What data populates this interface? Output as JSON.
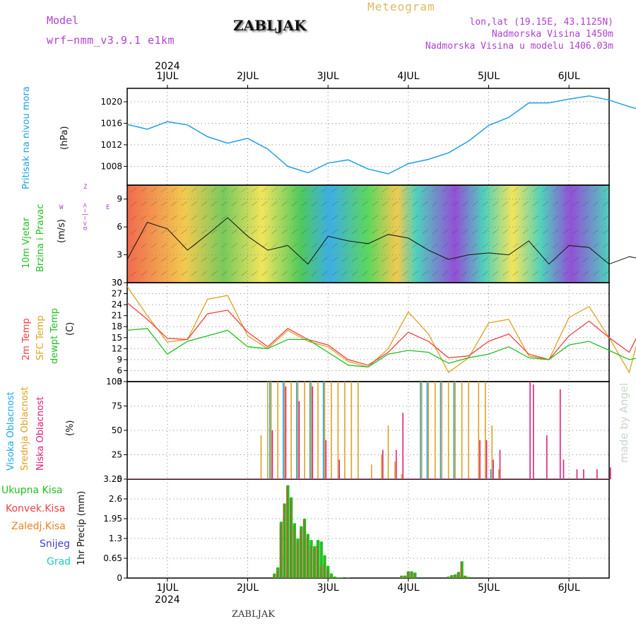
{
  "header": {
    "model_label": "Model",
    "model_name": "wrf−nmm_v3.9.1 e1km",
    "station": "ZABLJAK",
    "meteogram": "Meteogram",
    "lonlat": "lon,lat (19.15E, 43.1125N)",
    "elevation": "Nadmorska Visina 1450m",
    "model_elevation": "Nadmorska Visina u modelu 1406.03m",
    "credit": "made by Angel",
    "footer_station": "ZABLJAK"
  },
  "timeline": {
    "year": "2024",
    "days": [
      "1JUL",
      "2JUL",
      "3JUL",
      "4JUL",
      "5JUL",
      "6JUL"
    ],
    "start_hours_before_1jul": 12,
    "end_hours_after_6jul": 12
  },
  "colors": {
    "pressure": "#1ea0e6",
    "t2m": "#f04040",
    "sfc": "#e0a020",
    "dewpt": "#20c020",
    "wind_label": "#20c020",
    "high_cloud": "#18a8f0",
    "mid_cloud": "#e0a020",
    "low_cloud": "#e0207a",
    "total_precip": "#20c020",
    "conv_precip": "#f04040",
    "strat_precip": "#f08020",
    "snow": "#4040d0",
    "graupel": "#20c8c0",
    "compass": "#b040d0"
  },
  "panels": {
    "pressure": {
      "label": "Pritisak na nivou mora",
      "unit": "(hPa)"
    },
    "wind": {
      "label_line1": "10m Vjetar",
      "label_line2": "Brzina i Pravac",
      "unit": "(m/s)",
      "compass": {
        "n": "Z",
        "s": "α<−|−>",
        "w": "W",
        "e": "E"
      }
    },
    "temp": {
      "label1": "2m Temp",
      "label2": "SFC Temp",
      "label3": "dewpt Temp",
      "unit": "(C)"
    },
    "cloud": {
      "label1": "Visoka Oblacnost",
      "label2": "Srednja Oblacnost",
      "label3": "Niska Oblacnost",
      "unit": "(%)"
    },
    "precip": {
      "unit": "1hr Precip (mm)",
      "legend": [
        "Ukupna Kisa",
        "Konvek.Kisa",
        "Zaledj.Kisa",
        "Snijeg",
        "Grad"
      ]
    }
  },
  "chart_data": [
    {
      "type": "line",
      "title": "Pritisak na nivou mora",
      "ylabel": "(hPa)",
      "ylim": [
        1004.5,
        1022.5
      ],
      "yticks": [
        "1008",
        "1012",
        "1016",
        "1020"
      ],
      "grid": true,
      "x_hours": [
        -12,
        -6,
        0,
        6,
        12,
        18,
        24,
        30,
        36,
        42,
        48,
        54,
        60,
        66,
        72,
        78,
        84,
        90,
        96,
        102,
        108,
        114,
        120,
        126,
        132,
        138,
        144
      ],
      "series": [
        {
          "values": [
            1015.8,
            1014.9,
            1016.3,
            1015.7,
            1013.5,
            1012.3,
            1013.2,
            1011.2,
            1008.0,
            1006.8,
            1008.6,
            1009.2,
            1007.5,
            1006.6,
            1008.5,
            1009.3,
            1010.5,
            1012.7,
            1015.6,
            1017.1,
            1019.8,
            1019.8,
            1020.5,
            1021.1,
            1020.3,
            1019.1,
            1018.1
          ]
        }
      ]
    },
    {
      "type": "line",
      "title": "10m Vjetar Brzina i Pravac",
      "ylabel": "(m/s)",
      "ylim": [
        0,
        10.5
      ],
      "yticks": [
        "0",
        "3",
        "6",
        "9"
      ],
      "grid": true,
      "x_hours": [
        -12,
        -6,
        0,
        6,
        12,
        18,
        24,
        30,
        36,
        42,
        48,
        54,
        60,
        66,
        72,
        78,
        84,
        90,
        96,
        102,
        108,
        114,
        120,
        126,
        132,
        138,
        144
      ],
      "series": [
        {
          "values": [
            2.5,
            6.5,
            5.8,
            3.5,
            5.2,
            7.0,
            5.0,
            3.5,
            4.0,
            2.0,
            5.0,
            4.5,
            4.2,
            5.2,
            4.8,
            3.5,
            2.5,
            3.0,
            3.2,
            3.0,
            4.5,
            2.0,
            4.0,
            3.8,
            2.0,
            2.8,
            2.4
          ]
        }
      ]
    },
    {
      "type": "line",
      "title": "2m Temp / SFC Temp / dewpt Temp",
      "ylabel": "(C)",
      "ylim": [
        3,
        30
      ],
      "yticks": [
        "3",
        "6",
        "9",
        "12",
        "15",
        "18",
        "21",
        "24",
        "27",
        "30"
      ],
      "grid": true,
      "x_hours": [
        -12,
        -6,
        0,
        6,
        12,
        18,
        24,
        30,
        36,
        42,
        48,
        54,
        60,
        66,
        72,
        78,
        84,
        90,
        96,
        102,
        108,
        114,
        120,
        126,
        132,
        138,
        144
      ],
      "series": [
        {
          "name": "2m Temp",
          "values": [
            24.5,
            20.0,
            14.8,
            14.5,
            21.5,
            22.5,
            16.5,
            12.5,
            17.5,
            14.5,
            13.0,
            9.0,
            7.5,
            11.0,
            16.5,
            14.0,
            9.5,
            10.0,
            14.0,
            16.0,
            10.5,
            9.0,
            15.5,
            19.5,
            15.0,
            11.0,
            22.0
          ]
        },
        {
          "name": "SFC Temp",
          "values": [
            29.0,
            21.0,
            13.8,
            14.5,
            25.5,
            26.5,
            15.5,
            12.0,
            17.0,
            14.0,
            12.5,
            8.5,
            7.0,
            12.0,
            22.0,
            16.0,
            5.5,
            9.5,
            19.0,
            20.0,
            10.0,
            9.0,
            20.5,
            23.5,
            15.0,
            5.5,
            26.0
          ]
        },
        {
          "name": "dewpt Temp",
          "values": [
            17.0,
            17.5,
            10.5,
            14.0,
            15.5,
            17.0,
            12.5,
            12.0,
            14.5,
            14.5,
            11.0,
            7.5,
            7.0,
            10.5,
            11.5,
            11.0,
            8.0,
            9.5,
            10.5,
            12.5,
            9.5,
            9.0,
            13.0,
            14.0,
            11.5,
            9.0,
            10.0
          ]
        }
      ]
    },
    {
      "type": "bar",
      "title": "Visoka / Srednja / Niska Oblacnost",
      "ylabel": "(%)",
      "ylim": [
        0,
        100
      ],
      "yticks": [
        "0",
        "25",
        "50",
        "75",
        "100"
      ],
      "grid": true,
      "x_hours": [
        28,
        30,
        31,
        33,
        35,
        37,
        39,
        41,
        43,
        45,
        47,
        49,
        51,
        53,
        55,
        57,
        61,
        64,
        66,
        68,
        70,
        74,
        76,
        78,
        80,
        82,
        84,
        86,
        88,
        90,
        93,
        95,
        97,
        99,
        108,
        109,
        111,
        113,
        117,
        118,
        122,
        124,
        128,
        132,
        136,
        140
      ],
      "series": [
        {
          "name": "Visoka Oblacnost",
          "values": [
            0,
            0,
            100,
            0,
            100,
            0,
            100,
            0,
            100,
            0,
            100,
            0,
            0,
            0,
            0,
            0,
            0,
            0,
            0,
            0,
            0,
            0,
            100,
            100,
            0,
            100,
            0,
            100,
            0,
            0,
            0,
            0,
            10,
            0,
            0,
            0,
            0,
            0,
            0,
            0,
            0,
            0,
            0,
            0,
            0,
            0
          ]
        },
        {
          "name": "Srednja Oblacnost",
          "values": [
            45,
            100,
            100,
            100,
            100,
            100,
            100,
            100,
            100,
            100,
            100,
            100,
            100,
            100,
            100,
            100,
            15,
            25,
            55,
            18,
            5,
            0,
            100,
            100,
            100,
            100,
            100,
            100,
            100,
            100,
            100,
            100,
            55,
            10,
            0,
            0,
            0,
            0,
            0,
            0,
            0,
            0,
            0,
            0,
            0,
            0
          ]
        },
        {
          "name": "Niska Oblacnost",
          "values": [
            0,
            0,
            50,
            0,
            95,
            0,
            80,
            0,
            95,
            0,
            40,
            0,
            20,
            0,
            0,
            0,
            0,
            30,
            0,
            30,
            68,
            0,
            0,
            0,
            0,
            0,
            0,
            0,
            0,
            0,
            40,
            40,
            20,
            30,
            100,
            97,
            0,
            45,
            92,
            20,
            10,
            10,
            10,
            12,
            0,
            13
          ]
        }
      ]
    },
    {
      "type": "bar",
      "title": "1hr Precip",
      "ylabel": "1hr Precip (mm)",
      "ylim": [
        0,
        3.25
      ],
      "yticks": [
        "0",
        "0.65",
        "1.3",
        "1.95",
        "2.6",
        "3.25"
      ],
      "grid": true,
      "x_hours": [
        32,
        33,
        34,
        35,
        36,
        37,
        38,
        39,
        40,
        41,
        42,
        43,
        44,
        45,
        46,
        47,
        48,
        49,
        50,
        51,
        52,
        54,
        70,
        71,
        72,
        73,
        74,
        84,
        85,
        86,
        87,
        88,
        89,
        90
      ],
      "series": [
        {
          "name": "Ukupna Kisa",
          "values": [
            0.15,
            0.35,
            1.85,
            2.45,
            3.05,
            2.65,
            1.8,
            1.3,
            1.7,
            1.95,
            1.45,
            1.25,
            1.05,
            1.25,
            1.2,
            0.75,
            0.4,
            0.15,
            0.05,
            0.02,
            0.01,
            0.01,
            0.08,
            0.08,
            0.22,
            0.22,
            0.18,
            0.05,
            0.1,
            0.12,
            0.2,
            0.55,
            0.08,
            0.04
          ]
        },
        {
          "name": "Konvek.Kisa",
          "values": [
            0.1,
            0.25,
            1.75,
            2.45,
            3.0,
            2.6,
            1.7,
            1.2,
            1.6,
            1.9,
            1.35,
            1.05,
            0.95,
            1.05,
            0.4,
            0.45,
            0.25,
            0.05,
            0.02,
            0.01,
            0.01,
            0.01,
            0.06,
            0.06,
            0.2,
            0.2,
            0.15,
            0.04,
            0.08,
            0.1,
            0.18,
            0.5,
            0.06,
            0.02
          ]
        }
      ]
    }
  ]
}
